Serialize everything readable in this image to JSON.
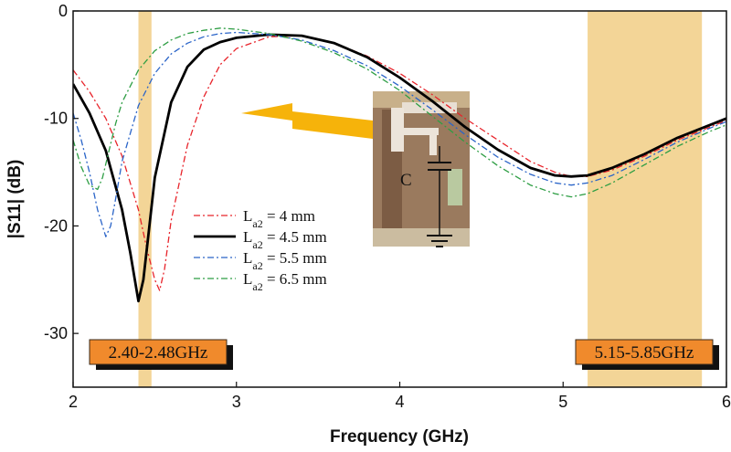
{
  "chart_data": {
    "type": "line",
    "title": "",
    "xlabel": "Frequency (GHz)",
    "ylabel": "|S11| (dB)",
    "xlim": [
      2,
      6
    ],
    "ylim": [
      -35,
      0
    ],
    "xticks": [
      2,
      3,
      4,
      5,
      6
    ],
    "yticks": [
      0,
      -10,
      -20,
      -30
    ],
    "ytick_labels": [
      "0",
      "-10",
      "-20",
      "-30"
    ],
    "grid": false,
    "legend_position": "center-left",
    "bands": [
      {
        "label": "2.40-2.48GHz",
        "from": 2.4,
        "to": 2.48
      },
      {
        "label": "5.15-5.85GHz",
        "from": 5.15,
        "to": 5.85
      }
    ],
    "inset": {
      "label": "C",
      "description_icon": "capacitor-schematic"
    },
    "series": [
      {
        "name": "La2 = 4 mm",
        "legend_main": "L",
        "legend_sub": "a2",
        "legend_rest": " = 4 mm",
        "color": "#e8242b",
        "style": "dashdot",
        "x": [
          2.0,
          2.1,
          2.2,
          2.3,
          2.4,
          2.45,
          2.5,
          2.53,
          2.56,
          2.6,
          2.7,
          2.8,
          2.9,
          3.0,
          3.2,
          3.4,
          3.6,
          3.8,
          4.0,
          4.2,
          4.4,
          4.6,
          4.8,
          4.95,
          5.05,
          5.15,
          5.3,
          5.5,
          5.7,
          5.9,
          6.0
        ],
        "y": [
          -5.5,
          -7.5,
          -10.0,
          -13.5,
          -18.5,
          -22.0,
          -25.0,
          -26.0,
          -24.0,
          -19.5,
          -12.5,
          -8.0,
          -5.0,
          -3.5,
          -2.4,
          -2.3,
          -3.0,
          -4.2,
          -5.8,
          -7.8,
          -10.0,
          -12.0,
          -14.0,
          -15.0,
          -15.4,
          -15.4,
          -14.8,
          -13.5,
          -12.0,
          -10.8,
          -10.2
        ]
      },
      {
        "name": "La2 = 4.5 mm",
        "legend_main": "L",
        "legend_sub": "a2",
        "legend_rest": " = 4.5 mm",
        "color": "#000000",
        "style": "solid",
        "x": [
          2.0,
          2.1,
          2.2,
          2.3,
          2.35,
          2.4,
          2.43,
          2.46,
          2.5,
          2.6,
          2.7,
          2.8,
          2.9,
          3.0,
          3.2,
          3.4,
          3.6,
          3.8,
          4.0,
          4.2,
          4.4,
          4.6,
          4.8,
          4.95,
          5.05,
          5.15,
          5.3,
          5.5,
          5.7,
          5.9,
          6.0
        ],
        "y": [
          -6.8,
          -9.5,
          -13.0,
          -18.5,
          -22.5,
          -27.0,
          -25.0,
          -21.0,
          -15.5,
          -8.5,
          -5.2,
          -3.6,
          -2.9,
          -2.5,
          -2.2,
          -2.3,
          -3.0,
          -4.3,
          -6.2,
          -8.4,
          -10.8,
          -12.9,
          -14.6,
          -15.3,
          -15.4,
          -15.3,
          -14.6,
          -13.3,
          -11.8,
          -10.6,
          -10.0
        ]
      },
      {
        "name": "La2 = 5.5 mm",
        "legend_main": "L",
        "legend_sub": "a2",
        "legend_rest": " = 5.5 mm",
        "color": "#2a64c8",
        "style": "dashdot",
        "x": [
          2.0,
          2.05,
          2.1,
          2.15,
          2.2,
          2.23,
          2.26,
          2.3,
          2.4,
          2.5,
          2.6,
          2.7,
          2.8,
          2.9,
          3.0,
          3.2,
          3.4,
          3.6,
          3.8,
          4.0,
          4.2,
          4.4,
          4.6,
          4.8,
          4.95,
          5.05,
          5.15,
          5.3,
          5.5,
          5.7,
          5.9,
          6.0
        ],
        "y": [
          -9.5,
          -12.0,
          -15.0,
          -18.5,
          -21.0,
          -20.0,
          -17.5,
          -14.0,
          -8.8,
          -5.8,
          -4.0,
          -3.0,
          -2.4,
          -2.1,
          -2.0,
          -2.2,
          -2.7,
          -3.7,
          -5.1,
          -7.0,
          -9.2,
          -11.5,
          -13.6,
          -15.2,
          -16.0,
          -16.2,
          -16.0,
          -15.3,
          -13.8,
          -12.2,
          -10.9,
          -10.3
        ]
      },
      {
        "name": "La2 = 6.5 mm",
        "legend_main": "L",
        "legend_sub": "a2",
        "legend_rest": " = 6.5 mm",
        "color": "#2e9e44",
        "style": "dashdot",
        "x": [
          2.0,
          2.05,
          2.1,
          2.15,
          2.18,
          2.22,
          2.26,
          2.3,
          2.4,
          2.5,
          2.6,
          2.7,
          2.8,
          2.9,
          3.0,
          3.2,
          3.4,
          3.6,
          3.8,
          4.0,
          4.2,
          4.4,
          4.6,
          4.8,
          4.95,
          5.05,
          5.15,
          5.3,
          5.5,
          5.7,
          5.9,
          6.0
        ],
        "y": [
          -12.0,
          -14.5,
          -16.2,
          -16.6,
          -15.5,
          -13.0,
          -10.5,
          -8.5,
          -5.5,
          -3.7,
          -2.7,
          -2.1,
          -1.8,
          -1.6,
          -1.7,
          -2.1,
          -2.8,
          -3.9,
          -5.4,
          -7.4,
          -9.8,
          -12.2,
          -14.4,
          -16.2,
          -17.0,
          -17.3,
          -17.0,
          -16.0,
          -14.3,
          -12.6,
          -11.2,
          -10.6
        ]
      }
    ]
  }
}
